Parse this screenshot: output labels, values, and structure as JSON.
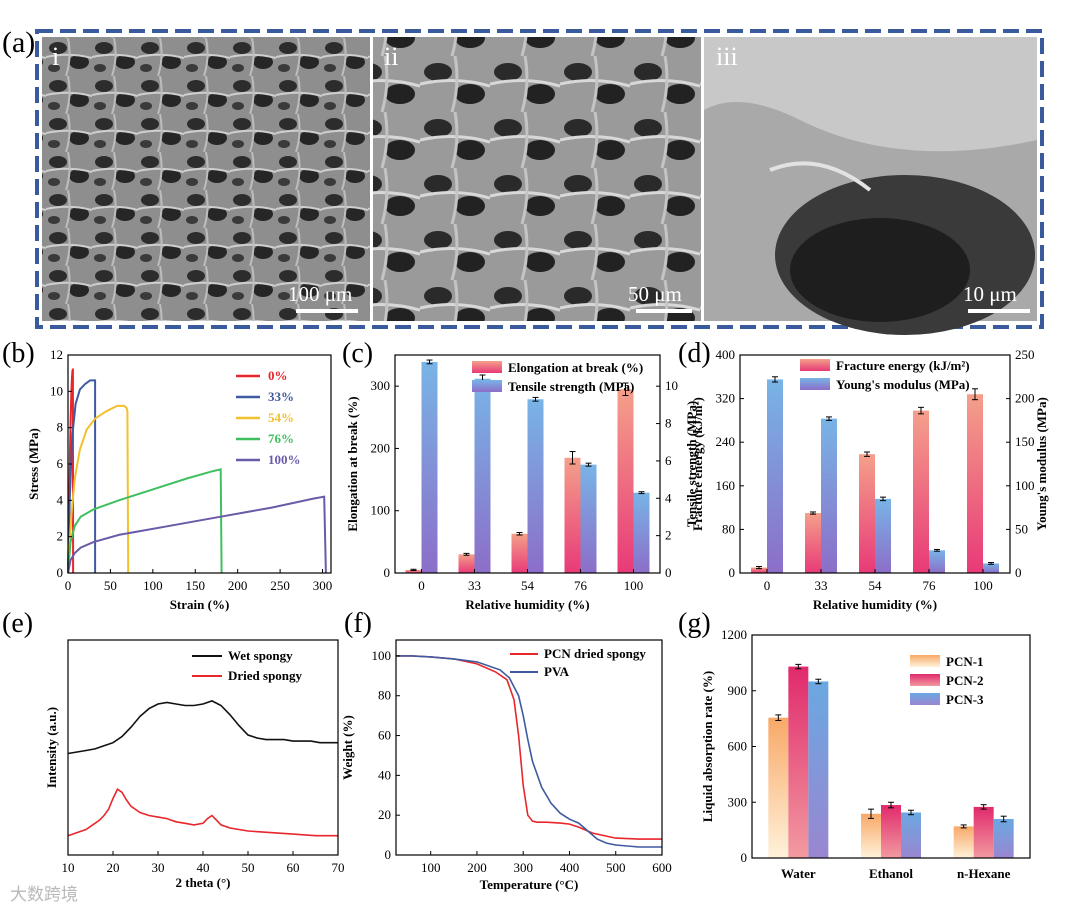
{
  "panel_labels": {
    "a": "(a)",
    "b": "(b)",
    "c": "(c)",
    "d": "(d)",
    "e": "(e)",
    "f": "(f)",
    "g": "(g)"
  },
  "sem": [
    {
      "label": "i",
      "scale": "100 μm"
    },
    {
      "label": "ii",
      "scale": "50 μm"
    },
    {
      "label": "iii",
      "scale": "10 μm"
    }
  ],
  "watermark": "大数跨境",
  "colors": {
    "frame": "#3a5a9e",
    "red": "#e8262b",
    "navy": "#3e5aa0",
    "yellow": "#f2c12e",
    "green": "#3fbf5f",
    "purple": "#6b5aa8",
    "pink": "#f07a8a",
    "blue": "#7fa9dd",
    "orange": "#f6b784",
    "black": "#111111"
  },
  "chart_data": [
    {
      "id": "b",
      "type": "line",
      "xlabel": "Strain (%)",
      "ylabel": "Stress (MPa)",
      "xlim": [
        0,
        310
      ],
      "ylim": [
        0,
        12
      ],
      "xticks": [
        "0",
        "50",
        "100",
        "150",
        "200",
        "250",
        "300"
      ],
      "yticks": [
        "0",
        "2",
        "4",
        "6",
        "8",
        "10",
        "12"
      ],
      "series": [
        {
          "name": "0%",
          "color": "#e8262b",
          "x": [
            0,
            0.8,
            1.6,
            2.4,
            3.2,
            4,
            4.6,
            5.2,
            5.6,
            5.8,
            6
          ],
          "y": [
            0,
            2,
            4.4,
            6.7,
            8.6,
            10,
            10.7,
            11.1,
            11.2,
            11.2,
            0
          ]
        },
        {
          "name": "33%",
          "color": "#3e5aa0",
          "x": [
            0,
            2,
            5,
            9,
            14,
            20,
            26,
            30,
            31,
            32,
            32
          ],
          "y": [
            0,
            4,
            7.5,
            9.3,
            10.1,
            10.4,
            10.6,
            10.6,
            10.6,
            10.6,
            0
          ]
        },
        {
          "name": "54%",
          "color": "#f2c12e",
          "x": [
            0,
            4,
            8,
            14,
            22,
            32,
            45,
            58,
            66,
            69,
            70,
            71
          ],
          "y": [
            0,
            3.2,
            5.2,
            6.8,
            7.9,
            8.5,
            8.9,
            9.2,
            9.2,
            9.1,
            8.9,
            0
          ]
        },
        {
          "name": "76%",
          "color": "#3fbf5f",
          "x": [
            0,
            3,
            8,
            15,
            30,
            60,
            100,
            140,
            170,
            180,
            181
          ],
          "y": [
            0,
            1.7,
            2.6,
            3.1,
            3.5,
            4.0,
            4.6,
            5.2,
            5.6,
            5.7,
            0
          ]
        },
        {
          "name": "100%",
          "color": "#6b5aa8",
          "x": [
            0,
            3,
            8,
            15,
            30,
            60,
            120,
            180,
            240,
            290,
            302,
            304
          ],
          "y": [
            0,
            0.7,
            1.1,
            1.4,
            1.7,
            2.1,
            2.6,
            3.1,
            3.6,
            4.1,
            4.2,
            0
          ]
        }
      ]
    },
    {
      "id": "c",
      "type": "bar",
      "xlabel": "Relative humidity (%)",
      "ylabel": "Elongation at break (%)",
      "y2label": "Tensile strength (MPa)",
      "categories": [
        "0",
        "33",
        "54",
        "76",
        "100"
      ],
      "ylim": [
        0,
        350
      ],
      "y2lim": [
        0,
        11.67
      ],
      "yticks": [
        "0",
        "100",
        "200",
        "300"
      ],
      "y2ticks": [
        "0",
        "2",
        "4",
        "6",
        "8",
        "10"
      ],
      "series": [
        {
          "name": "Elongation at break (%)",
          "axis": "left",
          "values": [
            5,
            30,
            63,
            185,
            295
          ],
          "err": [
            1,
            1.5,
            2,
            10,
            10
          ]
        },
        {
          "name": "Tensile strength (MPa)",
          "axis": "right",
          "values": [
            11.3,
            10.4,
            9.3,
            5.8,
            4.3
          ],
          "err": [
            0.1,
            0.2,
            0.1,
            0.08,
            0.05
          ]
        }
      ]
    },
    {
      "id": "d",
      "type": "bar",
      "xlabel": "Relative humidity (%)",
      "ylabel": "Fracture energy (kJ/m²)",
      "y2label": "Young's modulus (MPa)",
      "categories": [
        "0",
        "33",
        "54",
        "76",
        "100"
      ],
      "ylim": [
        0,
        400
      ],
      "y2lim": [
        0,
        250
      ],
      "yticks": [
        "0",
        "80",
        "160",
        "240",
        "320",
        "400"
      ],
      "y2ticks": [
        "0",
        "50",
        "100",
        "150",
        "200",
        "250"
      ],
      "series": [
        {
          "name": "Fracture energy (kJ/m²)",
          "axis": "left",
          "values": [
            10,
            110,
            218,
            298,
            328
          ],
          "err": [
            2,
            2,
            4,
            6,
            10
          ]
        },
        {
          "name": "Young's modulus (MPa)",
          "axis": "right",
          "values": [
            222,
            177,
            85,
            26,
            11
          ],
          "err": [
            3,
            2,
            2,
            1,
            1
          ]
        }
      ]
    },
    {
      "id": "e",
      "type": "line",
      "xlabel": "2 theta (°)",
      "ylabel": "Intensity (a.u.)",
      "xlim": [
        10,
        70
      ],
      "ylim": [
        0,
        100
      ],
      "xticks": [
        "10",
        "20",
        "30",
        "40",
        "50",
        "60",
        "70"
      ],
      "series": [
        {
          "name": "Wet spongy",
          "color": "#111111",
          "x": [
            10,
            12,
            14,
            16,
            18,
            20,
            22,
            24,
            26,
            28,
            30,
            32,
            34,
            36,
            38,
            40,
            42,
            44,
            46,
            48,
            50,
            52,
            54,
            56,
            58,
            60,
            62,
            64,
            66,
            68,
            70
          ],
          "y": [
            59,
            60,
            61,
            62,
            64,
            66,
            70,
            76,
            83,
            88,
            91,
            92,
            91,
            90,
            90,
            91,
            93,
            90,
            84,
            77,
            71,
            69,
            68,
            68,
            68,
            67,
            67,
            67,
            66,
            66,
            66
          ]
        },
        {
          "name": "Dried spongy",
          "color": "#e8262b",
          "x": [
            10,
            12,
            14,
            16,
            17,
            18,
            19,
            20,
            21,
            22,
            23,
            24,
            25,
            26,
            28,
            30,
            32,
            34,
            36,
            38,
            40,
            41,
            42,
            43,
            44,
            46,
            48,
            50,
            55,
            60,
            65,
            70
          ],
          "y": [
            6,
            8,
            10,
            14,
            16,
            19,
            23,
            30,
            36,
            34,
            29,
            25,
            23,
            21,
            19,
            18,
            17,
            15,
            14,
            13,
            14,
            17,
            19,
            16,
            13,
            11,
            10,
            9,
            8,
            7,
            6,
            6
          ]
        }
      ]
    },
    {
      "id": "f",
      "type": "line",
      "xlabel": "Temperature (°C)",
      "ylabel": "Weight (%)",
      "xlim": [
        25,
        600
      ],
      "ylim": [
        0,
        108
      ],
      "xticks": [
        "100",
        "200",
        "300",
        "400",
        "500",
        "600"
      ],
      "yticks": [
        "0",
        "20",
        "40",
        "60",
        "80",
        "100"
      ],
      "series": [
        {
          "name": "PCN dried spongy",
          "color": "#e8262b",
          "x": [
            25,
            60,
            100,
            150,
            200,
            240,
            265,
            280,
            290,
            300,
            310,
            320,
            330,
            350,
            380,
            400,
            420,
            450,
            500,
            550,
            600
          ],
          "y": [
            100,
            100,
            99.5,
            98.5,
            96,
            92,
            88,
            78,
            60,
            35,
            20,
            17,
            16.5,
            16.5,
            16,
            15.5,
            14,
            11,
            8.5,
            8,
            8
          ]
        },
        {
          "name": "PVA",
          "color": "#3e5aa0",
          "x": [
            25,
            60,
            100,
            150,
            200,
            250,
            270,
            290,
            300,
            310,
            320,
            340,
            360,
            380,
            400,
            420,
            440,
            460,
            480,
            500,
            550,
            600
          ],
          "y": [
            100,
            100,
            99.5,
            98.5,
            97,
            93,
            89,
            80,
            70,
            58,
            47,
            34,
            26,
            21,
            18,
            16,
            12,
            8,
            6,
            5,
            4,
            4
          ]
        }
      ]
    },
    {
      "id": "g",
      "type": "bar",
      "xlabel": "",
      "ylabel": "Liquid absorption rate (%)",
      "categories": [
        "Water",
        "Ethanol",
        "n-Hexane"
      ],
      "ylim": [
        0,
        1200
      ],
      "yticks": [
        "0",
        "300",
        "600",
        "900",
        "1200"
      ],
      "series": [
        {
          "name": "PCN-1",
          "values": [
            755,
            238,
            170
          ],
          "err": [
            15,
            25,
            8
          ]
        },
        {
          "name": "PCN-2",
          "values": [
            1030,
            285,
            275
          ],
          "err": [
            12,
            15,
            12
          ]
        },
        {
          "name": "PCN-3",
          "values": [
            950,
            245,
            210
          ],
          "err": [
            12,
            12,
            15
          ]
        }
      ]
    }
  ]
}
